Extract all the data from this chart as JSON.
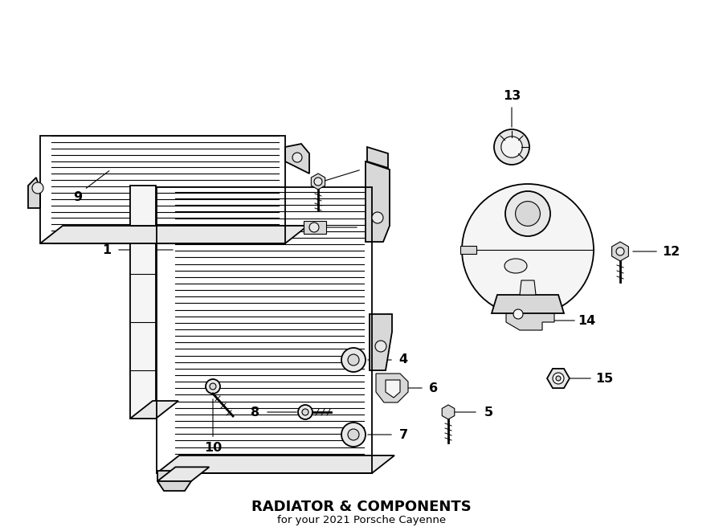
{
  "title": "RADIATOR & COMPONENTS",
  "subtitle": "for your 2021 Porsche Cayenne",
  "background_color": "#ffffff",
  "line_color": "#000000",
  "text_color": "#000000",
  "lw_main": 1.3,
  "lw_thin": 0.8,
  "lw_thick": 1.8
}
